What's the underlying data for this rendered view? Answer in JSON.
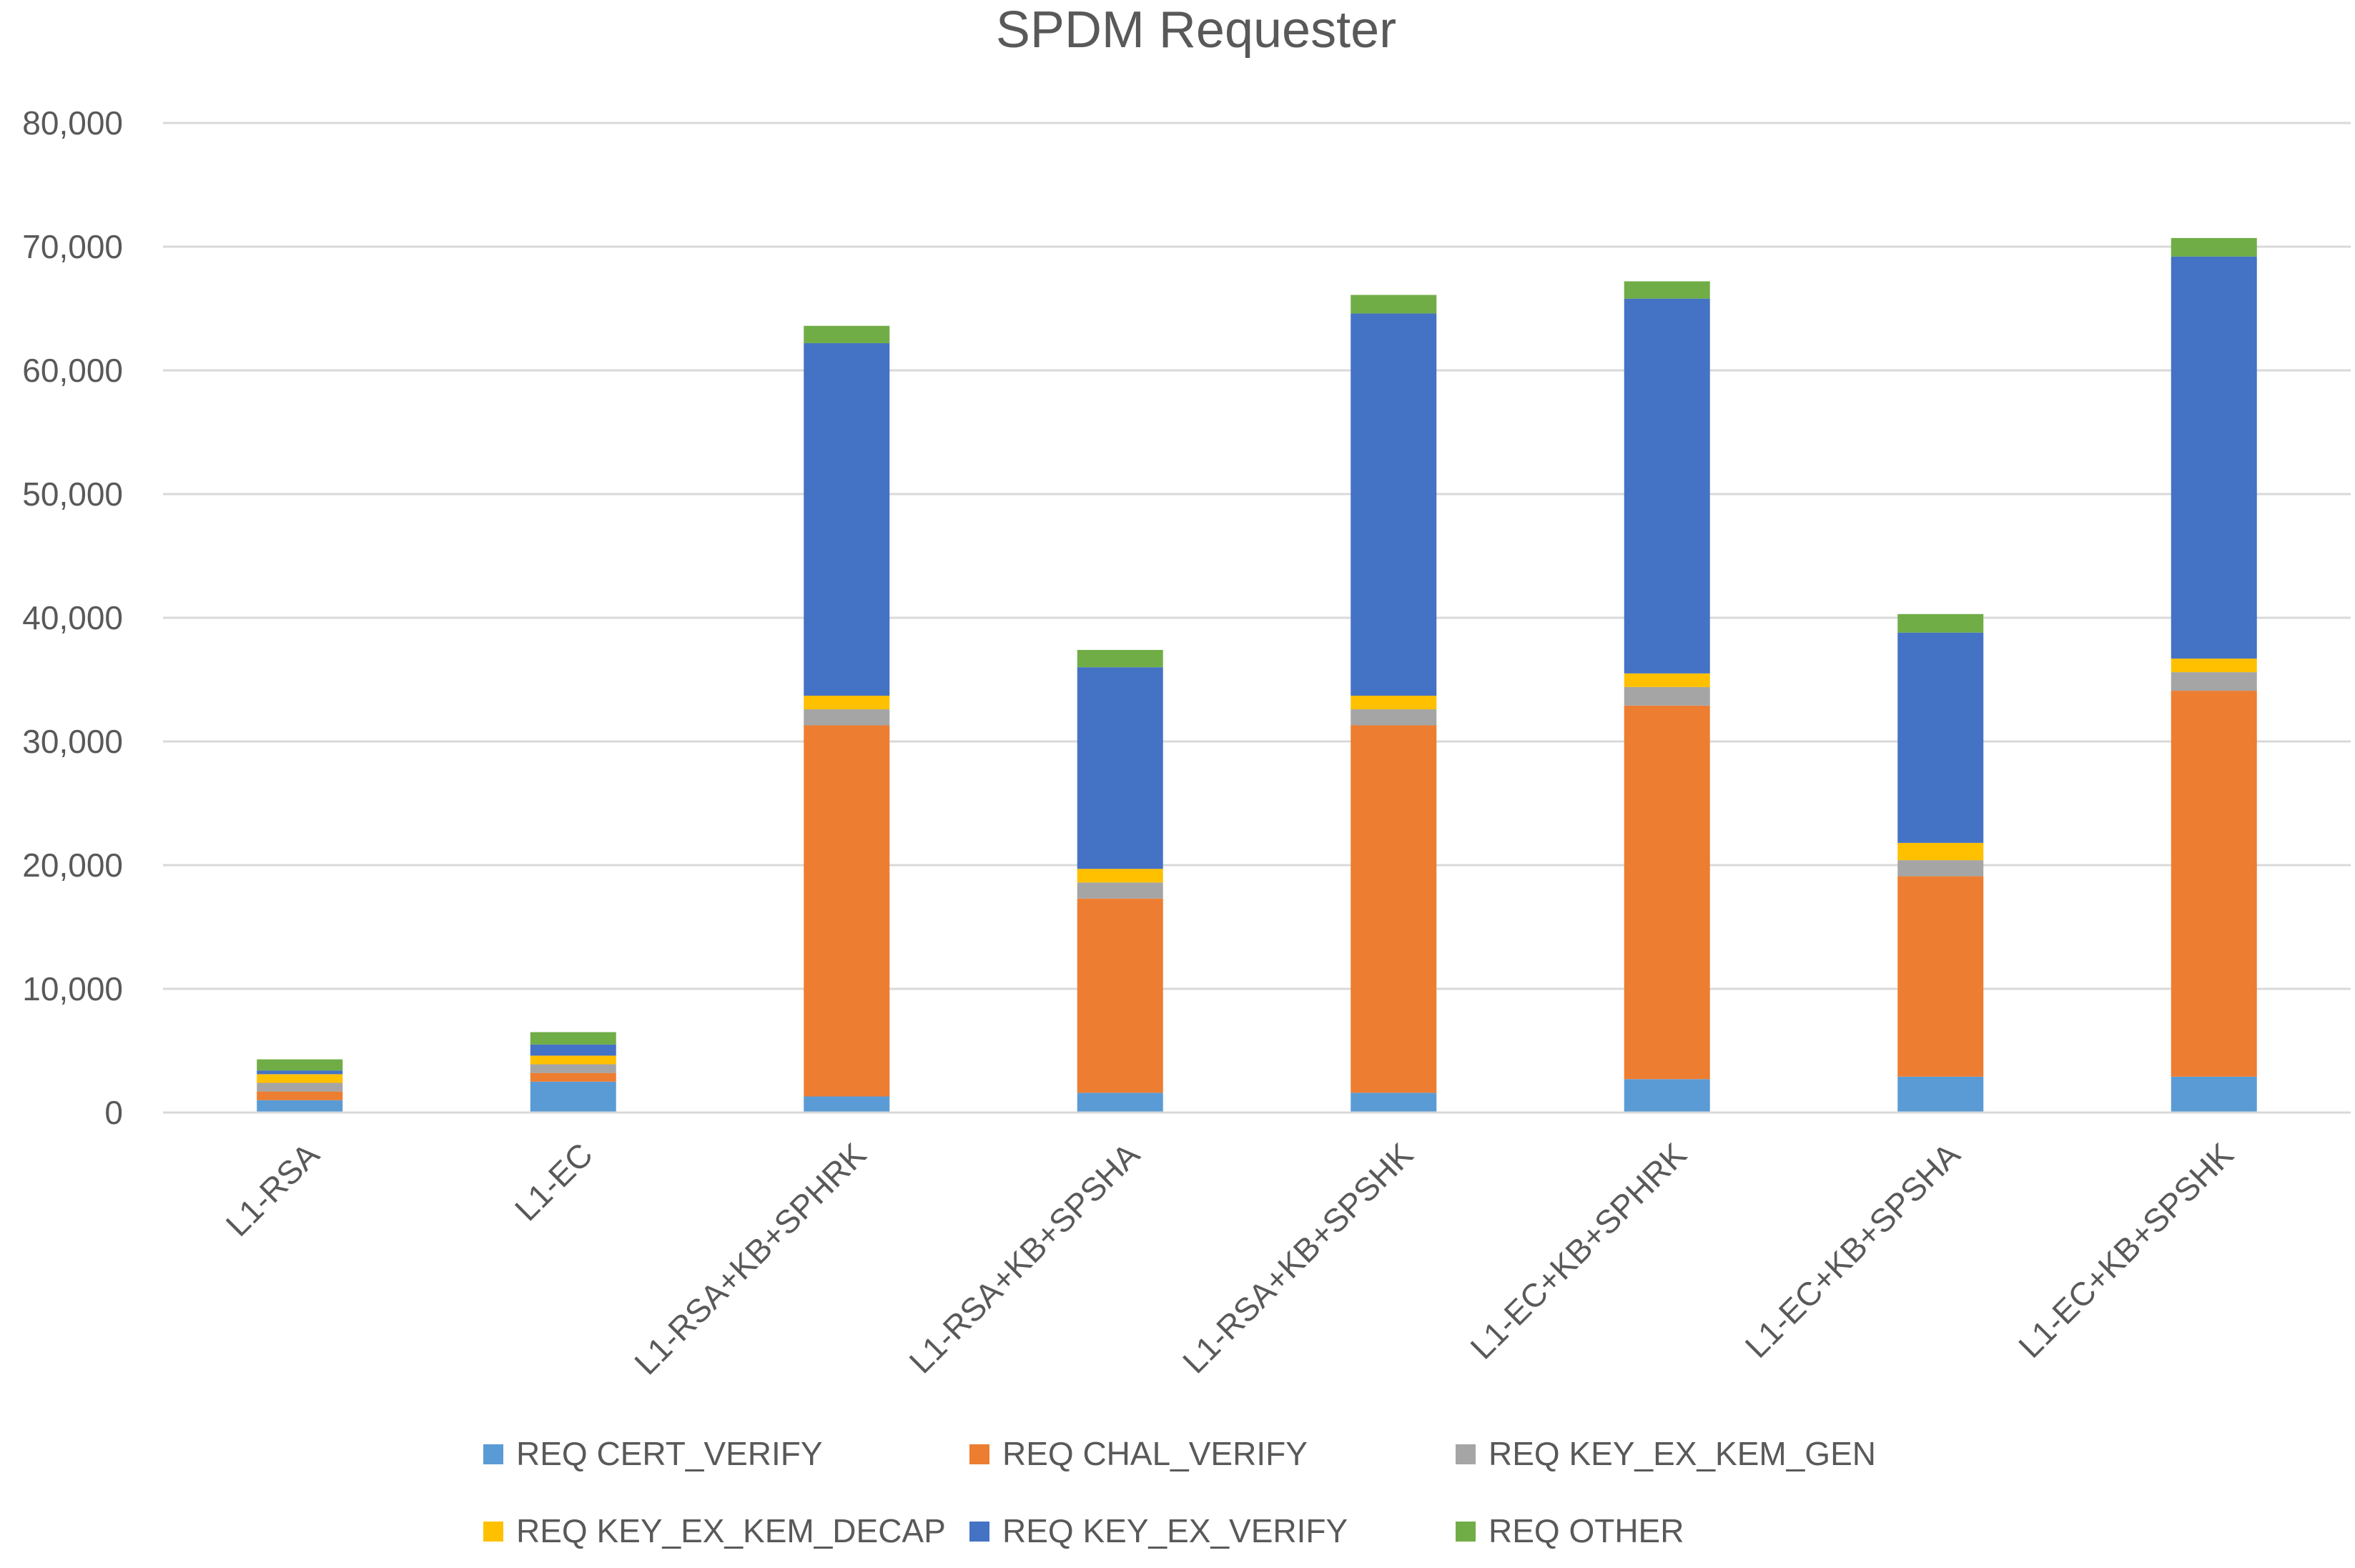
{
  "chart_data": {
    "type": "bar",
    "stacked": true,
    "title": "SPDM Requester",
    "xlabel": "",
    "ylabel": "",
    "ylim": [
      0,
      80000
    ],
    "y_ticks": [
      0,
      10000,
      20000,
      30000,
      40000,
      50000,
      60000,
      70000,
      80000
    ],
    "y_tick_labels": [
      "0",
      "10,000",
      "20,000",
      "30,000",
      "40,000",
      "50,000",
      "60,000",
      "70,000",
      "80,000"
    ],
    "grid": true,
    "legend_position": "bottom",
    "categories": [
      "L1-RSA",
      "L1-EC",
      "L1-RSA+KB+SPHRK",
      "L1-RSA+KB+SPSHA",
      "L1-RSA+KB+SPSHK",
      "L1-EC+KB+SPHRK",
      "L1-EC+KB+SPSHA",
      "L1-EC+KB+SPSHK"
    ],
    "series": [
      {
        "name": "REQ CERT_VERIFY",
        "color": "#5B9BD5",
        "values": [
          1000,
          2500,
          1300,
          1600,
          1600,
          2700,
          2900,
          2900
        ]
      },
      {
        "name": "REQ CHAL_VERIFY",
        "color": "#ED7D31",
        "values": [
          700,
          700,
          30000,
          15700,
          29700,
          30200,
          16200,
          31200
        ]
      },
      {
        "name": "REQ KEY_EX_KEM_GEN",
        "color": "#A5A5A5",
        "values": [
          700,
          700,
          1300,
          1300,
          1300,
          1500,
          1300,
          1500
        ]
      },
      {
        "name": "REQ KEY_EX_KEM_DECAP",
        "color": "#FFC000",
        "values": [
          700,
          700,
          1100,
          1100,
          1100,
          1100,
          1400,
          1100
        ]
      },
      {
        "name": "REQ KEY_EX_VERIFY",
        "color": "#4472C4",
        "values": [
          300,
          900,
          28500,
          16300,
          30900,
          30300,
          17000,
          32500
        ]
      },
      {
        "name": "REQ OTHER",
        "color": "#70AD47",
        "values": [
          900,
          1000,
          1400,
          1400,
          1500,
          1400,
          1500,
          1500
        ]
      }
    ]
  }
}
